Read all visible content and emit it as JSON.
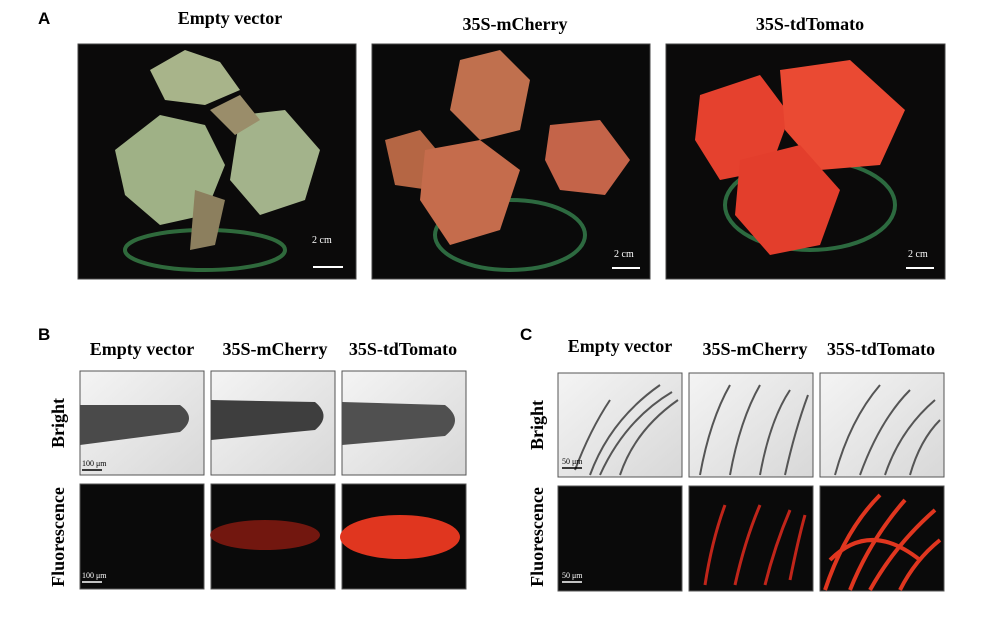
{
  "panels": [
    {
      "label": "A",
      "columns": [
        "Empty vector",
        "35S-mCherry",
        "35S-tdTomato"
      ],
      "scale_bars": [
        "2 cm",
        "2 cm",
        "2 cm"
      ]
    },
    {
      "label": "B",
      "columns": [
        "Empty vector",
        "35S-mCherry",
        "35S-tdTomato"
      ],
      "rows": [
        "Bright",
        "Fluorescence"
      ],
      "scale_bars": [
        "100 μm",
        "100 μm"
      ]
    },
    {
      "label": "C",
      "columns": [
        "Empty vector",
        "35S-mCherry",
        "35S-tdTomato"
      ],
      "rows": [
        "Bright",
        "Fluorescence"
      ],
      "scale_bars": [
        "50 μm",
        "50 μm"
      ]
    }
  ]
}
